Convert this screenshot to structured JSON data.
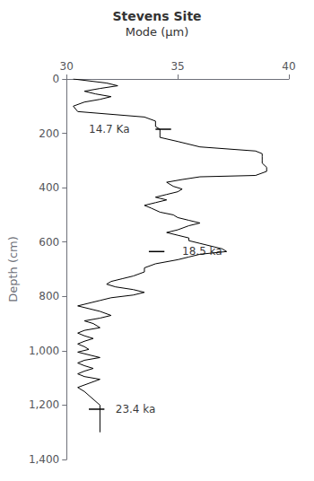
{
  "chart_data": {
    "type": "line",
    "title": "Stevens Site",
    "subtitle": "Mode (μm)",
    "ylabel": "Depth (cm)",
    "color": "black",
    "xlim": [
      30,
      40
    ],
    "ylim": [
      1400,
      0
    ],
    "xticks": [
      30,
      35,
      40
    ],
    "yticks": [
      0,
      200,
      400,
      600,
      800,
      1000,
      1200,
      1400
    ],
    "annotations": [
      {
        "text": "14.7 Ka",
        "x": 31.0,
        "y": 185
      },
      {
        "text": "18.5 ka",
        "x": 35.2,
        "y": 635
      },
      {
        "text": "23.4 ka",
        "x": 32.2,
        "y": 1215
      }
    ],
    "annotation_lines": [
      {
        "x1": 34.0,
        "x2": 34.7,
        "y": 185
      },
      {
        "x1": 33.7,
        "x2": 34.4,
        "y": 635
      },
      {
        "x1": 31.0,
        "x2": 31.7,
        "y": 1215
      }
    ],
    "x": [
      30.3,
      31.8,
      32.3,
      31.5,
      30.8,
      31.3,
      32.0,
      31.5,
      30.8,
      30.3,
      30.5,
      33.5,
      34.0,
      34.0,
      34.0,
      34.2,
      34.2,
      34.2,
      34.2,
      35.0,
      36.0,
      38.5,
      38.8,
      38.8,
      38.8,
      38.8,
      39.0,
      39.0,
      38.5,
      36.0,
      35.2,
      34.5,
      34.8,
      35.2,
      35.0,
      34.5,
      34.0,
      34.5,
      34.0,
      33.5,
      33.8,
      34.2,
      34.8,
      35.0,
      35.5,
      36.0,
      35.5,
      35.0,
      34.5,
      35.0,
      35.5,
      35.5,
      36.0,
      36.5,
      37.0,
      37.2,
      36.0,
      35.5,
      35.0,
      34.0,
      33.5,
      33.5,
      33.0,
      32.5,
      32.0,
      31.8,
      32.2,
      33.0,
      33.5,
      33.0,
      32.0,
      31.5,
      31.0,
      30.5,
      31.0,
      31.5,
      32.0,
      31.5,
      30.8,
      31.2,
      31.5,
      30.8,
      30.5,
      30.8,
      31.2,
      30.8,
      30.5,
      30.8,
      31.0,
      30.5,
      31.0,
      31.5,
      30.8,
      30.5,
      30.8,
      31.2,
      30.8,
      30.5,
      30.8,
      31.5,
      31.0,
      30.5,
      30.8,
      31.5,
      31.5
    ],
    "values": [
      0,
      15,
      25,
      35,
      45,
      55,
      65,
      75,
      85,
      100,
      120,
      140,
      155,
      165,
      175,
      185,
      195,
      205,
      215,
      230,
      250,
      265,
      275,
      285,
      300,
      310,
      325,
      340,
      355,
      360,
      370,
      380,
      395,
      405,
      415,
      425,
      435,
      445,
      455,
      465,
      475,
      490,
      500,
      510,
      520,
      530,
      540,
      555,
      565,
      575,
      585,
      595,
      605,
      615,
      625,
      635,
      645,
      655,
      665,
      680,
      695,
      710,
      725,
      735,
      745,
      755,
      765,
      775,
      785,
      795,
      805,
      815,
      825,
      835,
      845,
      855,
      870,
      880,
      890,
      900,
      915,
      925,
      935,
      945,
      955,
      965,
      975,
      985,
      995,
      1005,
      1015,
      1025,
      1035,
      1045,
      1055,
      1065,
      1075,
      1085,
      1095,
      1105,
      1120,
      1135,
      1150,
      1200,
      1300
    ]
  }
}
